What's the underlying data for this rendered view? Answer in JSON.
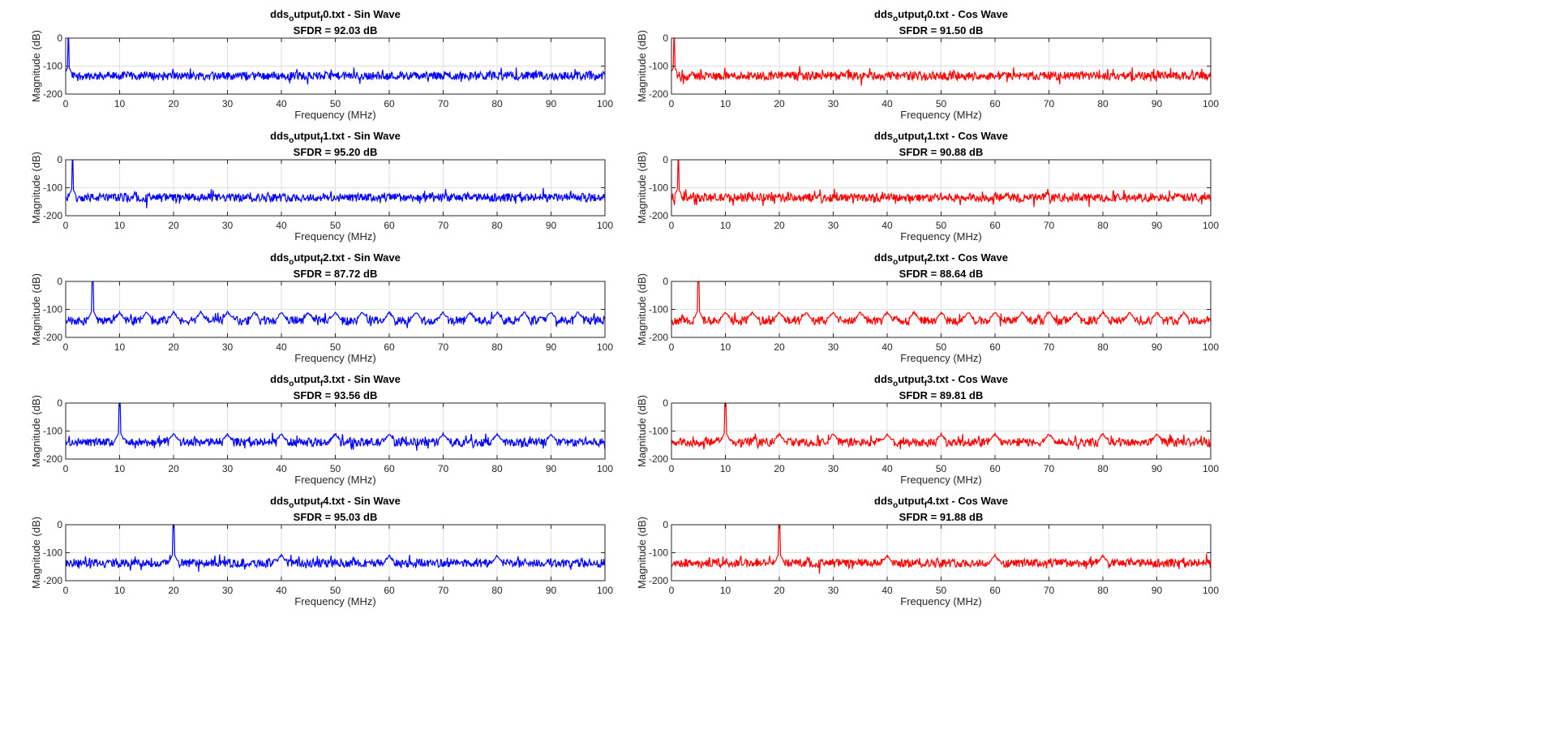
{
  "chart_data": [
    {
      "type": "line",
      "title_file": "dds",
      "title_sub1": "o",
      "title_mid": "utput",
      "title_sub2": "f",
      "title_rest": "0.txt - Sin Wave",
      "subtitle": "SFDR = 92.03 dB",
      "xlabel": "Frequency (MHz)",
      "ylabel": "Magnitude (dB)",
      "xlim": [
        0,
        100
      ],
      "ylim": [
        -200,
        0
      ],
      "xticks": [
        0,
        10,
        20,
        30,
        40,
        50,
        60,
        70,
        80,
        90,
        100
      ],
      "yticks": [
        0,
        -100,
        -200
      ],
      "grid": true,
      "color": "#0000ff",
      "peak_mhz": 0.5,
      "peak_db": 0,
      "noise_floor_db": -135,
      "spur_spacing_mhz": null
    },
    {
      "type": "line",
      "title_file": "dds",
      "title_sub1": "o",
      "title_mid": "utput",
      "title_sub2": "f",
      "title_rest": "0.txt - Cos Wave",
      "subtitle": "SFDR = 91.50 dB",
      "xlabel": "Frequency (MHz)",
      "ylabel": "Magnitude (dB)",
      "xlim": [
        0,
        100
      ],
      "ylim": [
        -200,
        0
      ],
      "xticks": [
        0,
        10,
        20,
        30,
        40,
        50,
        60,
        70,
        80,
        90,
        100
      ],
      "yticks": [
        0,
        -100,
        -200
      ],
      "grid": true,
      "color": "#ff0000",
      "peak_mhz": 0.5,
      "peak_db": 0,
      "noise_floor_db": -135,
      "spur_spacing_mhz": null
    },
    {
      "type": "line",
      "title_file": "dds",
      "title_sub1": "o",
      "title_mid": "utput",
      "title_sub2": "f",
      "title_rest": "1.txt - Sin Wave",
      "subtitle": "SFDR = 95.20 dB",
      "xlabel": "Frequency (MHz)",
      "ylabel": "Magnitude (dB)",
      "xlim": [
        0,
        100
      ],
      "ylim": [
        -200,
        0
      ],
      "xticks": [
        0,
        10,
        20,
        30,
        40,
        50,
        60,
        70,
        80,
        90,
        100
      ],
      "yticks": [
        0,
        -100,
        -200
      ],
      "grid": true,
      "color": "#0000ff",
      "peak_mhz": 1.25,
      "peak_db": -3,
      "noise_floor_db": -135,
      "spur_spacing_mhz": null
    },
    {
      "type": "line",
      "title_file": "dds",
      "title_sub1": "o",
      "title_mid": "utput",
      "title_sub2": "f",
      "title_rest": "1.txt - Cos Wave",
      "subtitle": "SFDR = 90.88 dB",
      "xlabel": "Frequency (MHz)",
      "ylabel": "Magnitude (dB)",
      "xlim": [
        0,
        100
      ],
      "ylim": [
        -200,
        0
      ],
      "xticks": [
        0,
        10,
        20,
        30,
        40,
        50,
        60,
        70,
        80,
        90,
        100
      ],
      "yticks": [
        0,
        -100,
        -200
      ],
      "grid": true,
      "color": "#ff0000",
      "peak_mhz": 1.25,
      "peak_db": -3,
      "noise_floor_db": -135,
      "spur_spacing_mhz": null
    },
    {
      "type": "line",
      "title_file": "dds",
      "title_sub1": "o",
      "title_mid": "utput",
      "title_sub2": "f",
      "title_rest": "2.txt - Sin Wave",
      "subtitle": "SFDR = 87.72 dB",
      "xlabel": "Frequency (MHz)",
      "ylabel": "Magnitude (dB)",
      "xlim": [
        0,
        100
      ],
      "ylim": [
        -200,
        0
      ],
      "xticks": [
        0,
        10,
        20,
        30,
        40,
        50,
        60,
        70,
        80,
        90,
        100
      ],
      "yticks": [
        0,
        -100,
        -200
      ],
      "grid": true,
      "color": "#0000ff",
      "peak_mhz": 5,
      "peak_db": -3,
      "noise_floor_db": -140,
      "spur_spacing_mhz": 5
    },
    {
      "type": "line",
      "title_file": "dds",
      "title_sub1": "o",
      "title_mid": "utput",
      "title_sub2": "f",
      "title_rest": "2.txt - Cos Wave",
      "subtitle": "SFDR = 88.64 dB",
      "xlabel": "Frequency (MHz)",
      "ylabel": "Magnitude (dB)",
      "xlim": [
        0,
        100
      ],
      "ylim": [
        -200,
        0
      ],
      "xticks": [
        0,
        10,
        20,
        30,
        40,
        50,
        60,
        70,
        80,
        90,
        100
      ],
      "yticks": [
        0,
        -100,
        -200
      ],
      "grid": true,
      "color": "#ff0000",
      "peak_mhz": 5,
      "peak_db": -3,
      "noise_floor_db": -140,
      "spur_spacing_mhz": 5
    },
    {
      "type": "line",
      "title_file": "dds",
      "title_sub1": "o",
      "title_mid": "utput",
      "title_sub2": "f",
      "title_rest": "3.txt - Sin Wave",
      "subtitle": "SFDR = 93.56 dB",
      "xlabel": "Frequency (MHz)",
      "ylabel": "Magnitude (dB)",
      "xlim": [
        0,
        100
      ],
      "ylim": [
        -200,
        0
      ],
      "xticks": [
        0,
        10,
        20,
        30,
        40,
        50,
        60,
        70,
        80,
        90,
        100
      ],
      "yticks": [
        0,
        -100,
        -200
      ],
      "grid": true,
      "color": "#0000ff",
      "peak_mhz": 10,
      "peak_db": 0,
      "noise_floor_db": -140,
      "spur_spacing_mhz": 10
    },
    {
      "type": "line",
      "title_file": "dds",
      "title_sub1": "o",
      "title_mid": "utput",
      "title_sub2": "f",
      "title_rest": "3.txt - Cos Wave",
      "subtitle": "SFDR = 89.81 dB",
      "xlabel": "Frequency (MHz)",
      "ylabel": "Magnitude (dB)",
      "xlim": [
        0,
        100
      ],
      "ylim": [
        -200,
        0
      ],
      "xticks": [
        0,
        10,
        20,
        30,
        40,
        50,
        60,
        70,
        80,
        90,
        100
      ],
      "yticks": [
        0,
        -100,
        -200
      ],
      "grid": true,
      "color": "#ff0000",
      "peak_mhz": 10,
      "peak_db": 0,
      "noise_floor_db": -140,
      "spur_spacing_mhz": 10
    },
    {
      "type": "line",
      "title_file": "dds",
      "title_sub1": "o",
      "title_mid": "utput",
      "title_sub2": "f",
      "title_rest": "4.txt - Sin Wave",
      "subtitle": "SFDR = 95.03 dB",
      "xlabel": "Frequency (MHz)",
      "ylabel": "Magnitude (dB)",
      "xlim": [
        0,
        100
      ],
      "ylim": [
        -200,
        0
      ],
      "xticks": [
        0,
        10,
        20,
        30,
        40,
        50,
        60,
        70,
        80,
        90,
        100
      ],
      "yticks": [
        0,
        -100,
        -200
      ],
      "grid": true,
      "color": "#0000ff",
      "peak_mhz": 20,
      "peak_db": 0,
      "noise_floor_db": -137,
      "spur_spacing_mhz": 20
    },
    {
      "type": "line",
      "title_file": "dds",
      "title_sub1": "o",
      "title_mid": "utput",
      "title_sub2": "f",
      "title_rest": "4.txt - Cos Wave",
      "subtitle": "SFDR = 91.88 dB",
      "xlabel": "Frequency (MHz)",
      "ylabel": "Magnitude (dB)",
      "xlim": [
        0,
        100
      ],
      "ylim": [
        -200,
        0
      ],
      "xticks": [
        0,
        10,
        20,
        30,
        40,
        50,
        60,
        70,
        80,
        90,
        100
      ],
      "yticks": [
        0,
        -100,
        -200
      ],
      "grid": true,
      "color": "#ff0000",
      "peak_mhz": 20,
      "peak_db": 0,
      "noise_floor_db": -137,
      "spur_spacing_mhz": 20
    }
  ]
}
